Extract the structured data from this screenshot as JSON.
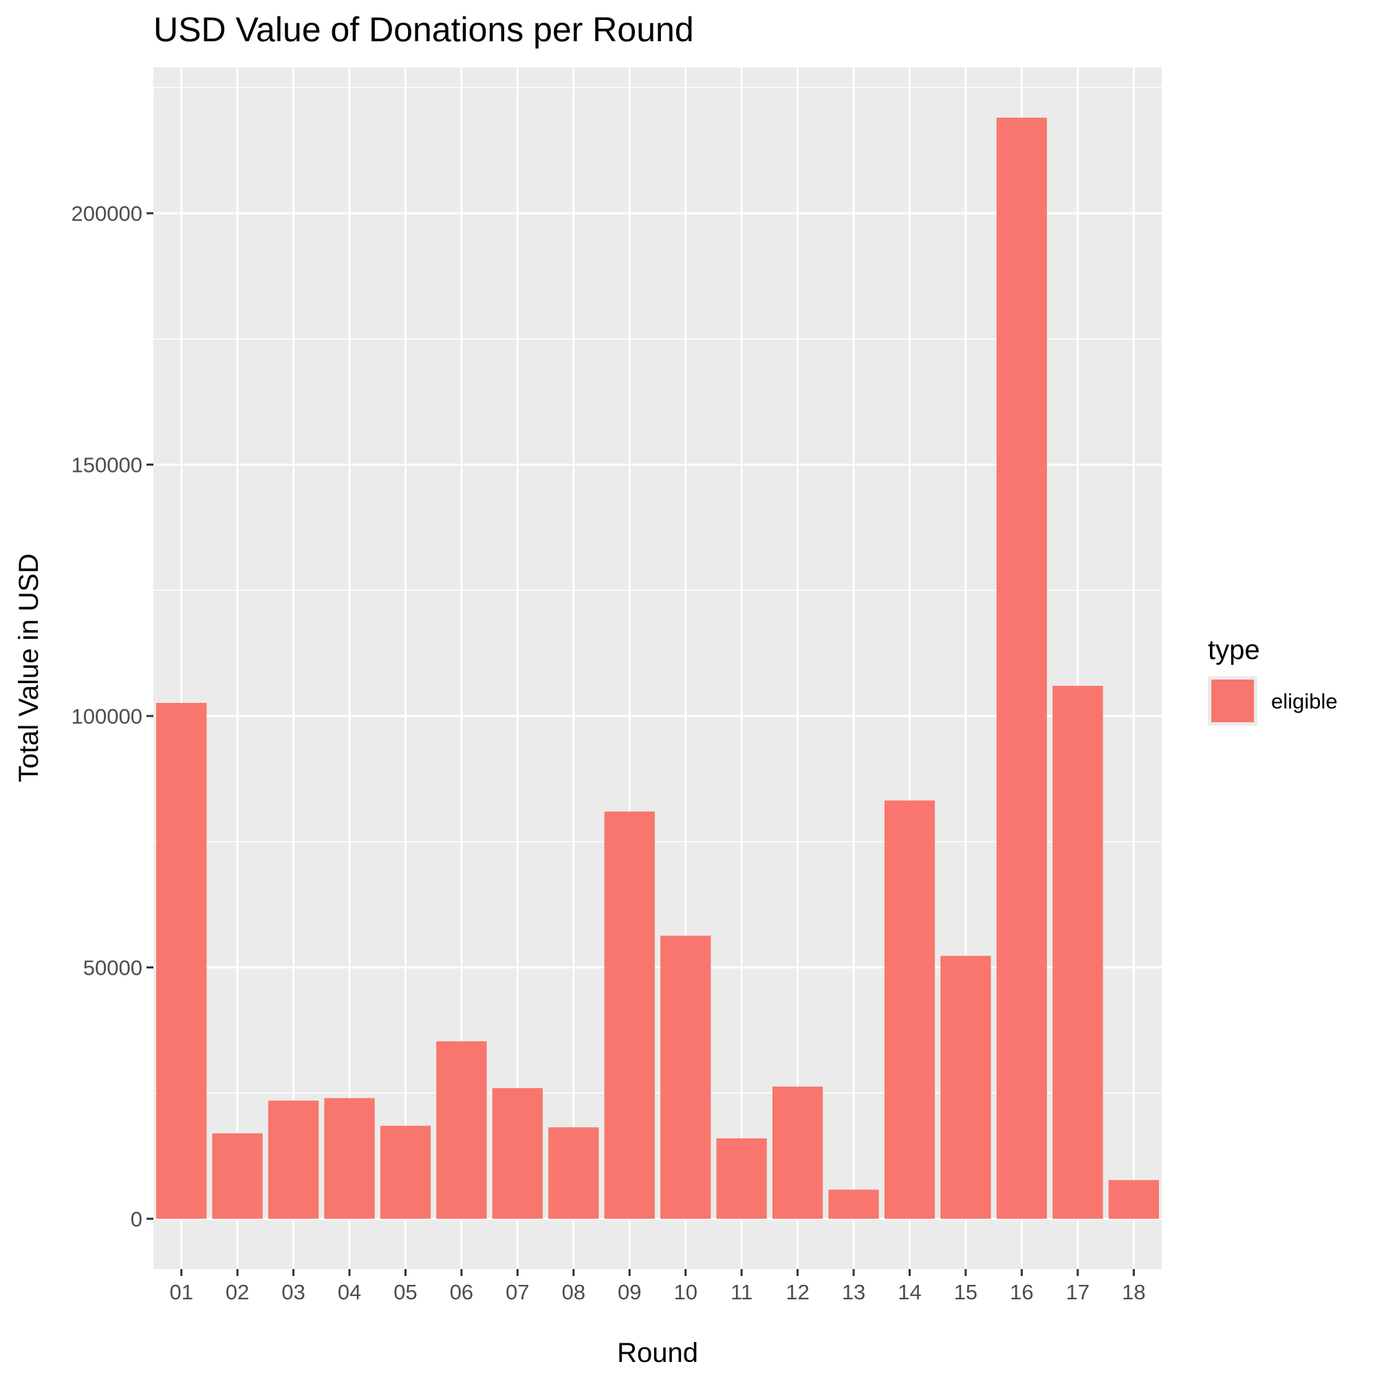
{
  "chart_data": {
    "type": "bar",
    "title": "USD Value of Donations per Round",
    "xlabel": "Round",
    "ylabel": "Total Value in USD",
    "categories": [
      "01",
      "02",
      "03",
      "04",
      "05",
      "06",
      "07",
      "08",
      "09",
      "10",
      "11",
      "12",
      "13",
      "14",
      "15",
      "16",
      "17",
      "18"
    ],
    "series": [
      {
        "name": "eligible",
        "color": "#f8766d",
        "values": [
          102600,
          17000,
          23500,
          24000,
          18500,
          35300,
          26000,
          18200,
          81000,
          56300,
          16000,
          26300,
          5800,
          83200,
          52300,
          219000,
          106000,
          7700
        ]
      }
    ],
    "ylim": [
      -10000,
      229000
    ],
    "yticks": [
      0,
      50000,
      100000,
      150000,
      200000
    ],
    "ytick_labels": [
      "0",
      "50000",
      "100000",
      "150000",
      "200000"
    ],
    "grid": true,
    "panel_background": "#ebebeb",
    "legend": {
      "title": "type",
      "position": "right",
      "entries": [
        "eligible"
      ]
    }
  }
}
